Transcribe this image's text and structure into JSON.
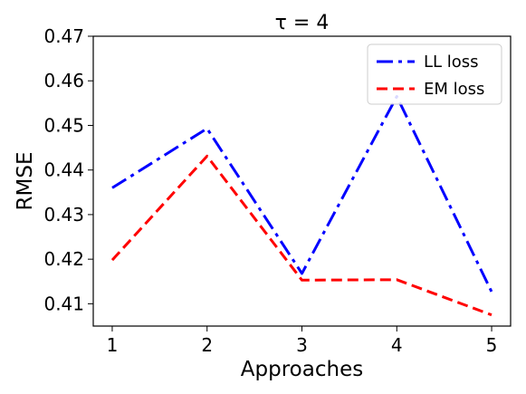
{
  "chart_data": {
    "type": "line",
    "title": "τ = 4",
    "xlabel": "Approaches",
    "ylabel": "RMSE",
    "categories": [
      1,
      2,
      3,
      4,
      5
    ],
    "xlim": [
      0.8,
      5.2
    ],
    "ylim": [
      0.405,
      0.47
    ],
    "yticks": [
      0.41,
      0.42,
      0.43,
      0.44,
      0.45,
      0.46,
      0.47
    ],
    "ytick_labels": [
      "0.41",
      "0.42",
      "0.43",
      "0.44",
      "0.45",
      "0.46",
      "0.47"
    ],
    "xtick_labels": [
      "1",
      "2",
      "3",
      "4",
      "5"
    ],
    "grid": false,
    "legend_position": "top-right",
    "series": [
      {
        "name": "LL loss",
        "values": [
          0.436,
          0.4493,
          0.4168,
          0.4565,
          0.4127
        ],
        "color": "#0000ff",
        "style": "dashdot"
      },
      {
        "name": "EM loss",
        "values": [
          0.4198,
          0.4431,
          0.4153,
          0.4154,
          0.4075
        ],
        "color": "#ff0000",
        "style": "dashed"
      }
    ]
  }
}
